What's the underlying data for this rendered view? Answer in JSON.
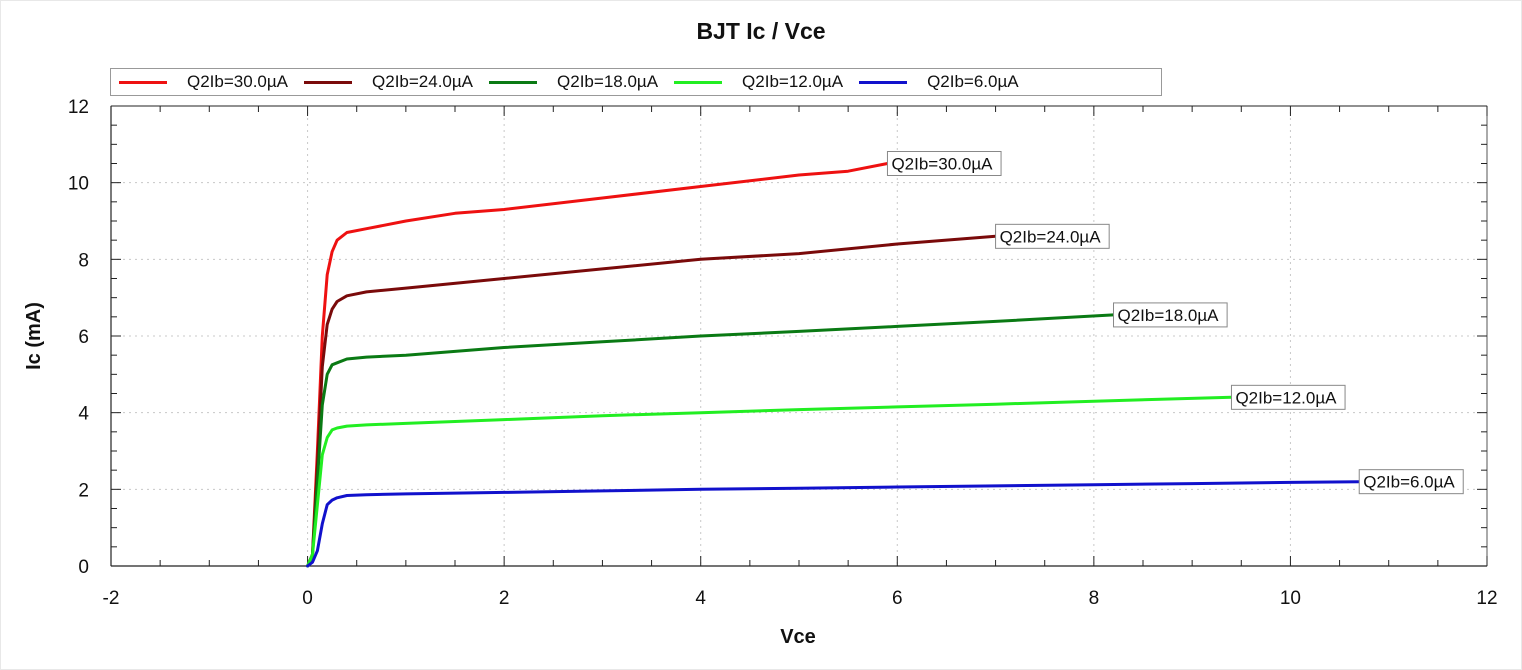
{
  "chart_data": {
    "type": "line",
    "title": "BJT Ic / Vce",
    "xlabel": "Vce",
    "ylabel": "Ic (mA)",
    "xlim": [
      -2,
      12
    ],
    "ylim": [
      0,
      12
    ],
    "xticks": [
      "-2",
      "0",
      "2",
      "4",
      "6",
      "8",
      "10",
      "12"
    ],
    "yticks": [
      "0",
      "2",
      "4",
      "6",
      "8",
      "10",
      "12"
    ],
    "grid": true,
    "legend_position": "top",
    "series": [
      {
        "name": "Q2Ib=30.0µA",
        "color": "#ee1111",
        "x": [
          0,
          0.05,
          0.1,
          0.15,
          0.2,
          0.25,
          0.3,
          0.4,
          0.6,
          1.0,
          1.5,
          2.0,
          3.0,
          4.0,
          5.0,
          5.5,
          5.9
        ],
        "y": [
          0,
          0.3,
          3.0,
          6.0,
          7.6,
          8.2,
          8.5,
          8.7,
          8.8,
          9.0,
          9.2,
          9.3,
          9.6,
          9.9,
          10.2,
          10.3,
          10.5
        ]
      },
      {
        "name": "Q2Ib=24.0µA",
        "color": "#7a0a0a",
        "x": [
          0,
          0.05,
          0.1,
          0.15,
          0.2,
          0.25,
          0.3,
          0.4,
          0.6,
          1.0,
          2.0,
          3.0,
          4.0,
          5.0,
          6.0,
          7.0
        ],
        "y": [
          0,
          0.3,
          2.6,
          5.2,
          6.3,
          6.7,
          6.9,
          7.05,
          7.15,
          7.25,
          7.5,
          7.75,
          8.0,
          8.15,
          8.4,
          8.6
        ]
      },
      {
        "name": "Q2Ib=18.0µA",
        "color": "#0a7a14",
        "x": [
          0,
          0.05,
          0.1,
          0.15,
          0.2,
          0.25,
          0.3,
          0.4,
          0.6,
          1.0,
          2.0,
          3.0,
          4.0,
          5.0,
          6.0,
          7.0,
          8.2
        ],
        "y": [
          0,
          0.3,
          2.2,
          4.2,
          5.0,
          5.25,
          5.3,
          5.4,
          5.45,
          5.5,
          5.7,
          5.85,
          6.0,
          6.12,
          6.25,
          6.38,
          6.55
        ]
      },
      {
        "name": "Q2Ib=12.0µA",
        "color": "#22ee22",
        "x": [
          0,
          0.05,
          0.1,
          0.15,
          0.2,
          0.25,
          0.3,
          0.4,
          0.6,
          1.0,
          2.0,
          3.0,
          4.0,
          5.0,
          6.0,
          7.0,
          8.0,
          9.4
        ],
        "y": [
          0,
          0.3,
          1.6,
          2.9,
          3.35,
          3.55,
          3.6,
          3.65,
          3.68,
          3.72,
          3.82,
          3.92,
          4.0,
          4.08,
          4.15,
          4.22,
          4.3,
          4.4
        ]
      },
      {
        "name": "Q2Ib=6.0µA",
        "color": "#1111cc",
        "x": [
          0,
          0.05,
          0.1,
          0.15,
          0.2,
          0.25,
          0.3,
          0.4,
          0.6,
          1.0,
          2.0,
          3.0,
          4.0,
          5.0,
          6.0,
          7.0,
          8.0,
          9.0,
          10.0,
          10.7
        ],
        "y": [
          0,
          0.1,
          0.4,
          1.1,
          1.6,
          1.72,
          1.78,
          1.84,
          1.86,
          1.88,
          1.92,
          1.96,
          2.0,
          2.03,
          2.06,
          2.09,
          2.12,
          2.15,
          2.18,
          2.2
        ]
      }
    ]
  },
  "legend": {
    "items": [
      {
        "label": "Q2Ib=30.0µA",
        "color": "#ee1111"
      },
      {
        "label": "Q2Ib=24.0µA",
        "color": "#7a0a0a"
      },
      {
        "label": "Q2Ib=18.0µA",
        "color": "#0a7a14"
      },
      {
        "label": "Q2Ib=12.0µA",
        "color": "#22ee22"
      },
      {
        "label": "Q2Ib=6.0µA",
        "color": "#1111cc"
      }
    ]
  },
  "end_labels": [
    "Q2Ib=30.0µA",
    "Q2Ib=24.0µA",
    "Q2Ib=18.0µA",
    "Q2Ib=12.0µA",
    "Q2Ib=6.0µA"
  ]
}
